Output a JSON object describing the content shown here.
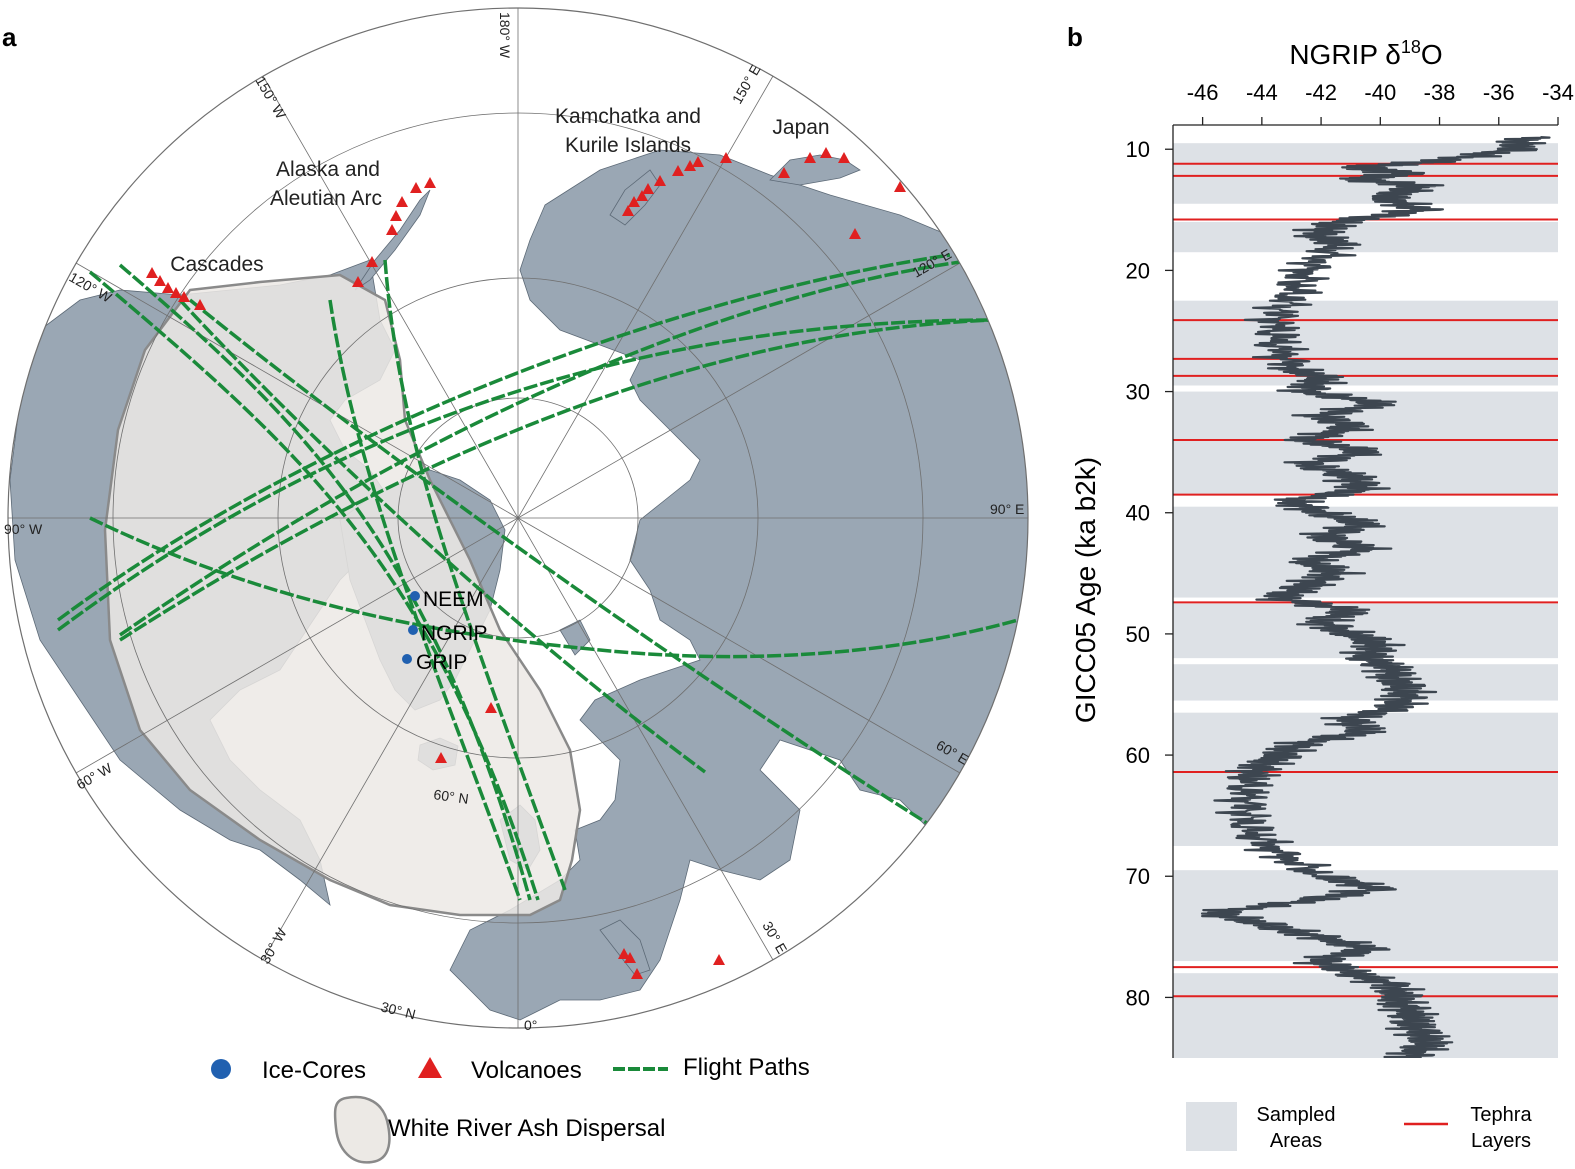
{
  "panel_a": {
    "label": "a",
    "meridian_labels": [
      "180° W",
      "150° W",
      "150° E",
      "120° W",
      "120° E",
      "90° W",
      "90° E",
      "60° W",
      "60° E",
      "30° W",
      "30° E",
      "0°"
    ],
    "parallel_labels": [
      "60° N",
      "30° N"
    ],
    "region_labels": {
      "kamchatka_line1": "Kamchatka and",
      "kamchatka_line2": "Kurile Islands",
      "japan": "Japan",
      "alaska_line1": "Alaska and",
      "alaska_line2": "Aleutian Arc",
      "cascades": "Cascades"
    },
    "ice_cores": [
      "NEEM",
      "NGRIP",
      "GRIP"
    ],
    "legend": {
      "ice_cores": "Ice-Cores",
      "volcanoes": "Volcanoes",
      "flight_paths": "Flight Paths",
      "dispersal": "White River Ash Dispersal"
    },
    "colors": {
      "land": "#9aa7b4",
      "ocean": "#ffffff",
      "ash": "#ece9e5",
      "flight": "#1a8a3a",
      "volcano": "#e02020",
      "core": "#2060b0"
    }
  },
  "panel_b": {
    "label": "b",
    "title_main": "NGRIP δ",
    "title_sup": "18",
    "title_end": "O",
    "ylabel": "GICC05 Age (ka b2k)",
    "legend": {
      "sampled_line1": "Sampled",
      "sampled_line2": "Areas",
      "tephra_line1": "Tephra",
      "tephra_line2": "Layers"
    },
    "colors": {
      "sampled": "#dde1e6",
      "line": "#3d4650",
      "tephra": "#e02020"
    }
  },
  "chart_data": {
    "type": "line",
    "title": "NGRIP δ18O",
    "xlabel": "",
    "ylabel": "GICC05 Age (ka b2k)",
    "xlim": [
      -47,
      -34
    ],
    "ylim": [
      85,
      8
    ],
    "x_ticks": [
      -46,
      -44,
      -42,
      -40,
      -38,
      -36,
      -34
    ],
    "y_ticks": [
      10,
      20,
      30,
      40,
      50,
      60,
      70,
      80
    ],
    "series": [
      {
        "age": [
          9,
          10,
          11,
          11.5,
          12,
          12.5,
          13,
          14,
          15,
          16,
          17,
          18,
          20,
          22,
          24,
          26,
          28,
          29,
          30,
          31,
          32,
          33,
          34,
          35,
          36,
          37,
          38,
          39,
          40,
          41,
          42,
          43,
          44,
          45,
          46,
          47,
          48,
          49,
          50,
          51,
          52,
          53,
          54,
          55,
          56,
          57,
          58,
          59,
          60,
          61,
          62,
          64,
          66,
          68,
          70,
          71,
          72,
          73,
          74,
          75,
          76,
          77,
          78,
          79,
          80,
          81,
          82,
          83,
          84,
          85
        ],
        "d18O": [
          -35,
          -35.5,
          -38,
          -41,
          -39,
          -41,
          -38.5,
          -40,
          -38.5,
          -41.5,
          -42,
          -41.5,
          -42.5,
          -43,
          -43.5,
          -43.5,
          -43,
          -42,
          -42.5,
          -40,
          -42,
          -41,
          -42.5,
          -40.5,
          -42.5,
          -41,
          -40.5,
          -43,
          -42,
          -40.5,
          -42,
          -40.5,
          -42.5,
          -41.5,
          -42.5,
          -43.5,
          -41,
          -42,
          -41,
          -40,
          -40.5,
          -39.5,
          -39.5,
          -39,
          -39.5,
          -41,
          -40.5,
          -42.5,
          -43.5,
          -44,
          -44.5,
          -44.5,
          -44.5,
          -43.5,
          -42,
          -40,
          -42.5,
          -45.5,
          -44,
          -42,
          -40.5,
          -42,
          -41,
          -39.5,
          -39.5,
          -39,
          -39,
          -38.5,
          -38.5,
          -39
        ]
      }
    ],
    "sampled_areas": [
      [
        9.5,
        14.5
      ],
      [
        16,
        18.5
      ],
      [
        22.5,
        29.5
      ],
      [
        30,
        38.5
      ],
      [
        39.5,
        47
      ],
      [
        47.5,
        52
      ],
      [
        52.5,
        55.5
      ],
      [
        56.5,
        67.5
      ],
      [
        69.5,
        77
      ],
      [
        78,
        85
      ]
    ],
    "tephra_layers": [
      11.2,
      12.2,
      15.8,
      24.1,
      27.3,
      28.7,
      34.0,
      38.5,
      47.4,
      61.4,
      77.5,
      79.9
    ]
  }
}
